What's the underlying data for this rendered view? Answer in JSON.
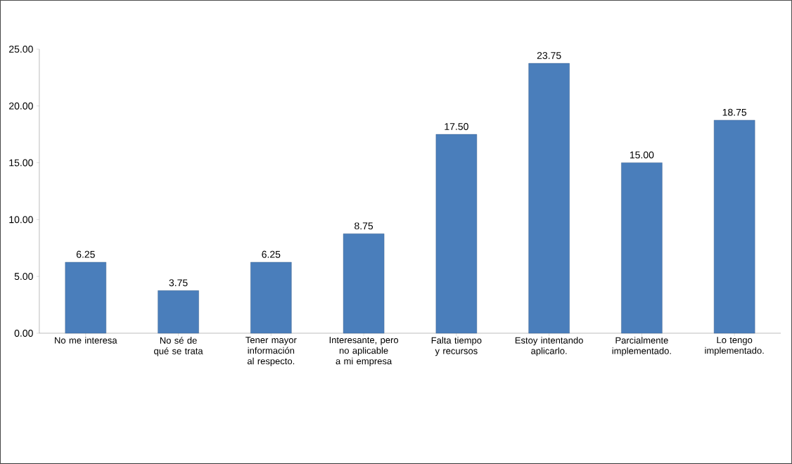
{
  "chart_data": {
    "type": "bar",
    "categories": [
      "No me interesa",
      "No sé de qué se trata",
      "Tener mayor información al respecto.",
      "Interesante, pero no aplicable a mi empresa",
      "Falta tiempo y recursos",
      "Estoy intentando aplicarlo.",
      "Parcialmente implementado.",
      "Lo tengo implementado."
    ],
    "values": [
      6.25,
      3.75,
      6.25,
      8.75,
      17.5,
      23.75,
      15,
      18.75
    ],
    "value_labels": [
      "6.25",
      "3.75",
      "6.25",
      "8.75",
      "17.50",
      "23.75",
      "15.00",
      "18.75"
    ],
    "color": "#4a7ebb",
    "ylim": [
      0,
      25
    ],
    "yticks": [
      {
        "value": 0,
        "label": "0.00"
      },
      {
        "value": 5,
        "label": "5.00"
      },
      {
        "value": 10,
        "label": "10.00"
      },
      {
        "value": 15,
        "label": "15.00"
      },
      {
        "value": 20,
        "label": "20.00"
      },
      {
        "value": 25,
        "label": "25.00"
      }
    ],
    "grid": false
  }
}
